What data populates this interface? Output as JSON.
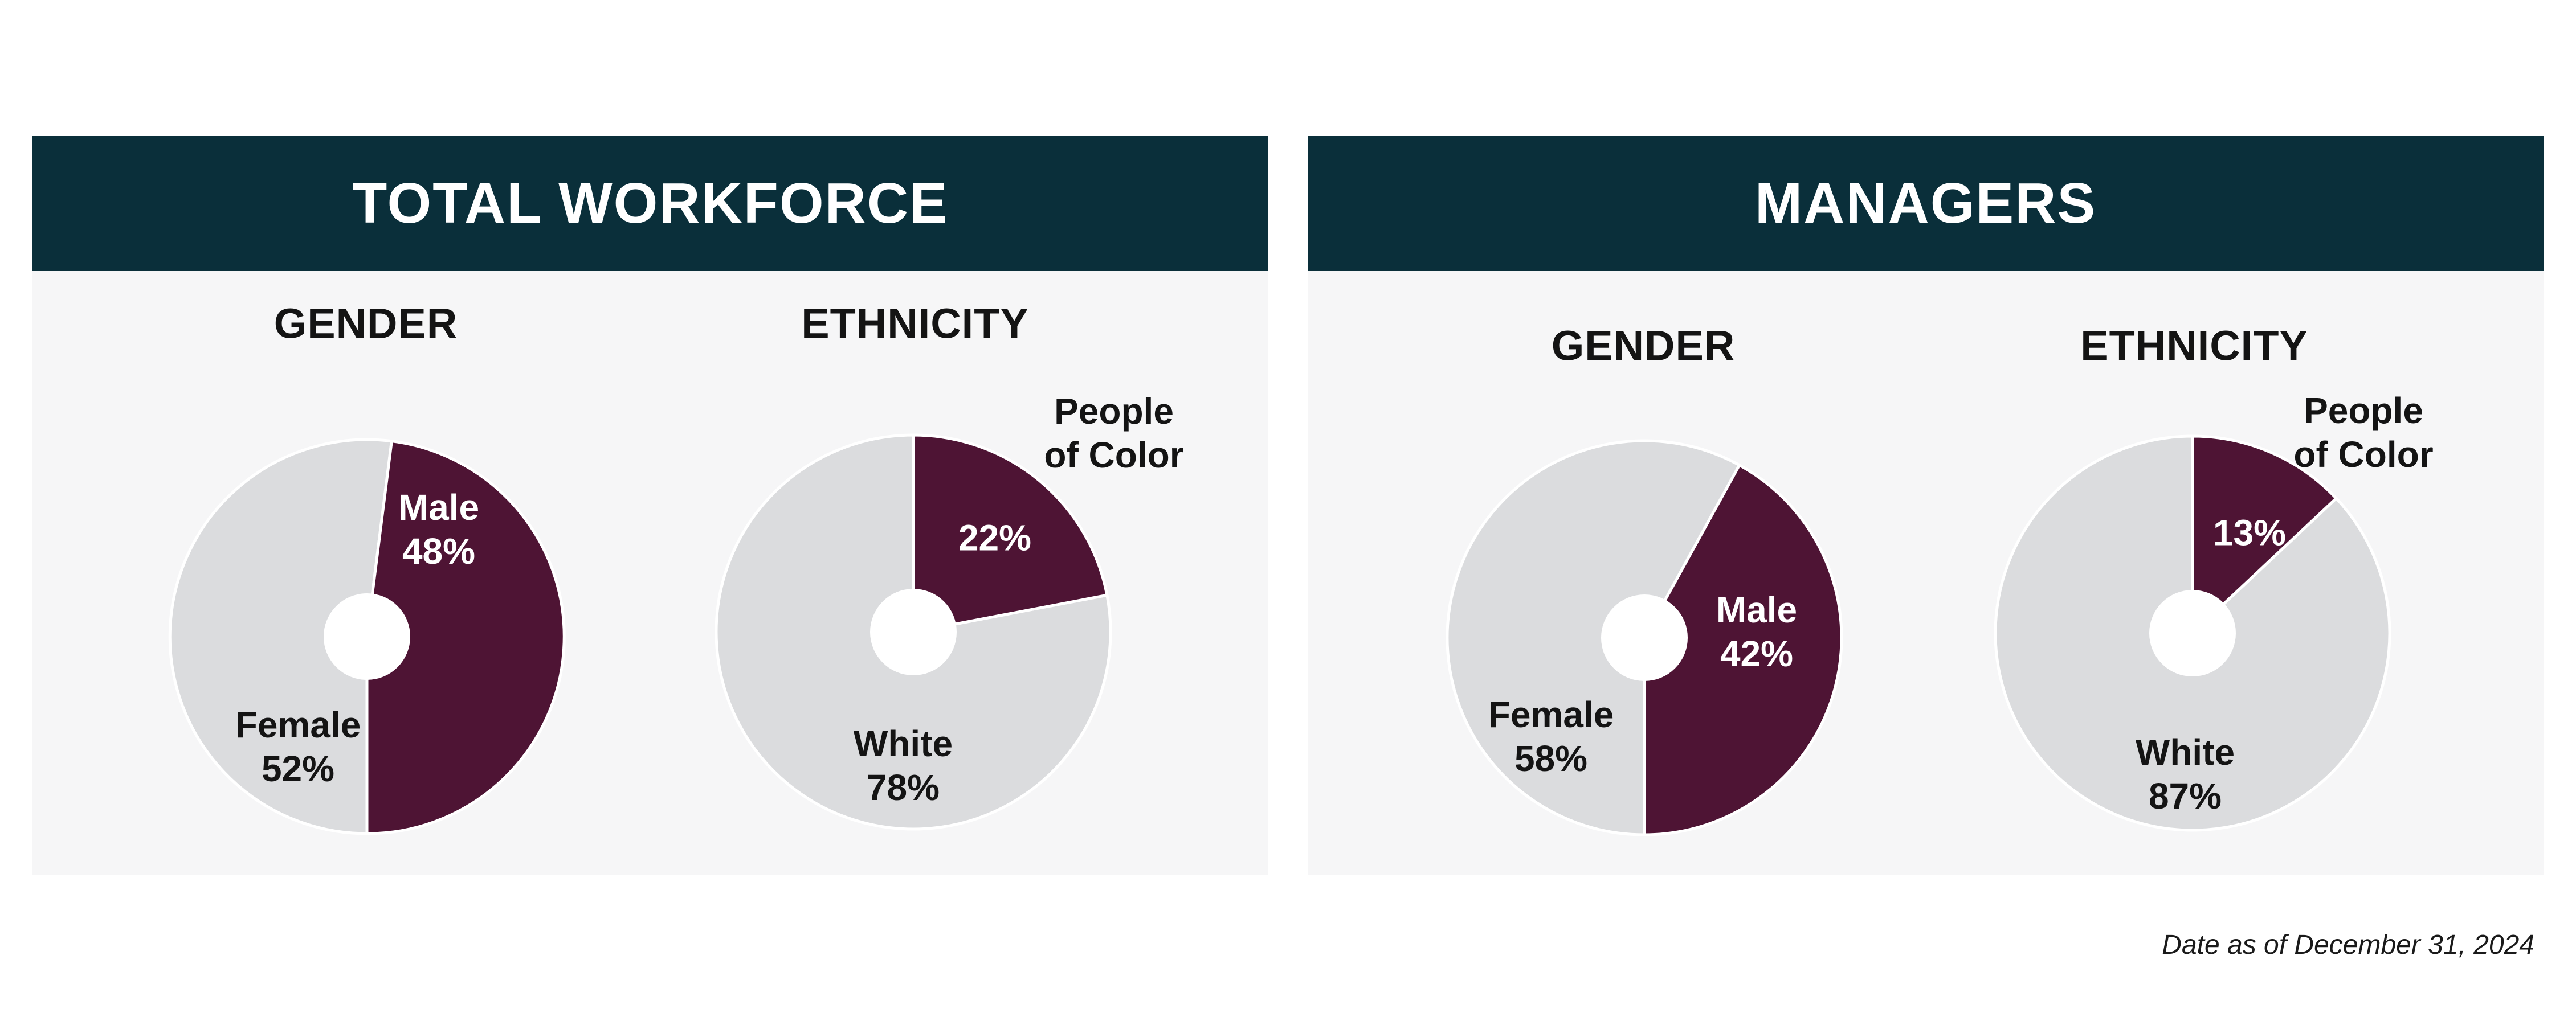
{
  "page": {
    "footnote": "Date as of December 31, 2024"
  },
  "colors": {
    "header_bg": "#0a2f3a",
    "panel_bg": "#f6f6f7",
    "accent": "#4e1434",
    "muted": "#dbdcde",
    "text_dark": "#141414",
    "text_light": "#ffffff",
    "footnote": "#1a1a1a"
  },
  "panels": [
    {
      "title": "TOTAL WORKFORCE"
    },
    {
      "title": "MANAGERS"
    }
  ],
  "chart_data": [
    {
      "type": "pie",
      "panel": "TOTAL WORKFORCE",
      "title": "GENDER",
      "legend_position": "none",
      "slices": [
        {
          "label": "Male",
          "value": 48,
          "pct_label": "48%",
          "color_role": "accent"
        },
        {
          "label": "Female",
          "value": 52,
          "pct_label": "52%",
          "color_role": "muted"
        }
      ],
      "accent_start_deg": 7.2
    },
    {
      "type": "pie",
      "panel": "TOTAL WORKFORCE",
      "title": "ETHNICITY",
      "legend_position": "none",
      "slices": [
        {
          "label": "People of Color",
          "label_lines": [
            "People",
            "of Color"
          ],
          "value": 22,
          "pct_label": "22%",
          "color_role": "accent"
        },
        {
          "label": "White",
          "value": 78,
          "pct_label": "78%",
          "color_role": "muted"
        }
      ],
      "accent_start_deg": 0
    },
    {
      "type": "pie",
      "panel": "MANAGERS",
      "title": "GENDER",
      "legend_position": "none",
      "slices": [
        {
          "label": "Male",
          "value": 42,
          "pct_label": "42%",
          "color_role": "accent"
        },
        {
          "label": "Female",
          "value": 58,
          "pct_label": "58%",
          "color_role": "muted"
        }
      ],
      "accent_start_deg": 28.8
    },
    {
      "type": "pie",
      "panel": "MANAGERS",
      "title": "ETHNICITY",
      "legend_position": "none",
      "slices": [
        {
          "label": "People of Color",
          "label_lines": [
            "People",
            "of Color"
          ],
          "value": 13,
          "pct_label": "13%",
          "color_role": "accent"
        },
        {
          "label": "White",
          "value": 87,
          "pct_label": "87%",
          "color_role": "muted"
        }
      ],
      "accent_start_deg": 0
    }
  ]
}
